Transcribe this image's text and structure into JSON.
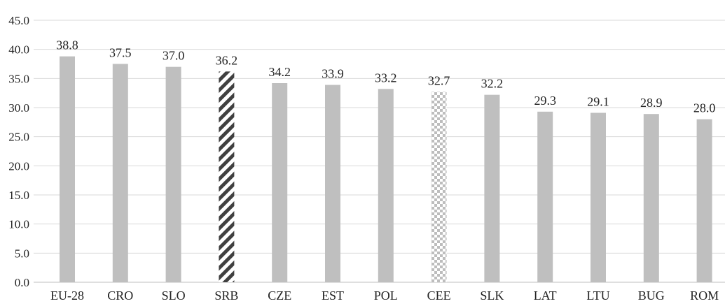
{
  "chart_data": {
    "type": "bar",
    "categories": [
      "EU-28",
      "CRO",
      "SLO",
      "SRB",
      "CZE",
      "EST",
      "POL",
      "CEE",
      "SLK",
      "LAT",
      "LTU",
      "BUG",
      "ROM"
    ],
    "values": [
      38.8,
      37.5,
      37.0,
      36.2,
      34.2,
      33.9,
      33.2,
      32.7,
      32.2,
      29.3,
      29.1,
      28.9,
      28.0
    ],
    "data_labels": [
      "38.8",
      "37.5",
      "37.0",
      "36.2",
      "34.2",
      "33.9",
      "33.2",
      "32.7",
      "32.2",
      "29.3",
      "29.1",
      "28.9",
      "28.0"
    ],
    "bar_styles": [
      "solid",
      "solid",
      "solid",
      "diagonal-hatch",
      "solid",
      "solid",
      "solid",
      "checker",
      "solid",
      "solid",
      "solid",
      "solid",
      "solid"
    ],
    "ylim": [
      0,
      45
    ],
    "yticks": [
      "0.0",
      "5.0",
      "10.0",
      "15.0",
      "20.0",
      "25.0",
      "30.0",
      "35.0",
      "40.0",
      "45.0"
    ],
    "grid": true,
    "legend": "none",
    "colors": {
      "bar": "#bfbfbf",
      "hatch": "#404040",
      "checker": "#bdbdbd",
      "grid": "#d9d9d9",
      "axis": "#bfbfbf",
      "text": "#222222"
    }
  }
}
